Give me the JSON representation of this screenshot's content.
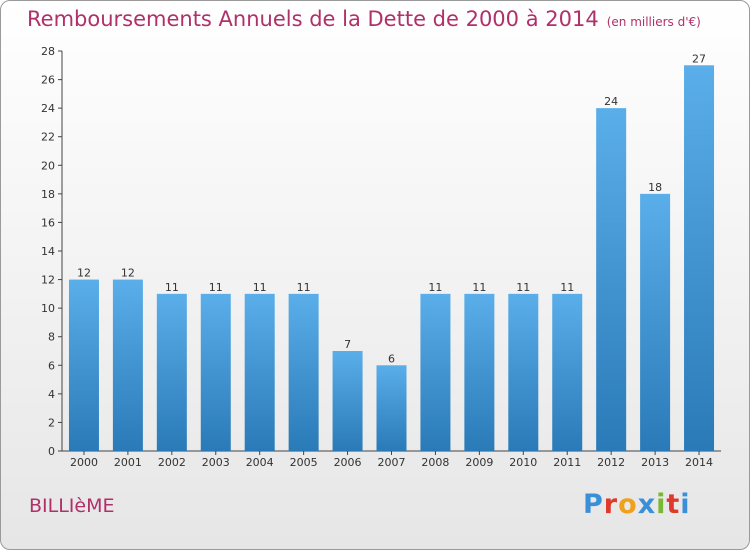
{
  "header": {
    "title": "Remboursements Annuels de la Dette de 2000 à 2014",
    "unit": "(en milliers d'€)"
  },
  "footer": {
    "town": "BILLIèME",
    "logo": "Proxiti"
  },
  "colors": {
    "bar_light": "#5aaee9",
    "bar_dark": "#2a7ab8",
    "title": "#b0306a",
    "logo": [
      "#3b8fd8",
      "#e0392b",
      "#f0a11b",
      "#3b8fd8",
      "#79b833",
      "#e0392b",
      "#3b8fd8"
    ]
  },
  "chart_data": {
    "type": "bar",
    "title": "Remboursements Annuels de la Dette de 2000 à 2014",
    "categories": [
      "2000",
      "2001",
      "2002",
      "2003",
      "2004",
      "2005",
      "2006",
      "2007",
      "2008",
      "2009",
      "2010",
      "2011",
      "2012",
      "2013",
      "2014"
    ],
    "values": [
      12,
      12,
      11,
      11,
      11,
      11,
      7,
      6,
      11,
      11,
      11,
      11,
      24,
      18,
      27
    ],
    "ylim": [
      0,
      28
    ],
    "yticks": [
      0,
      2,
      4,
      6,
      8,
      10,
      12,
      14,
      16,
      18,
      20,
      22,
      24,
      26,
      28
    ],
    "grid": false,
    "data_labels": true
  }
}
